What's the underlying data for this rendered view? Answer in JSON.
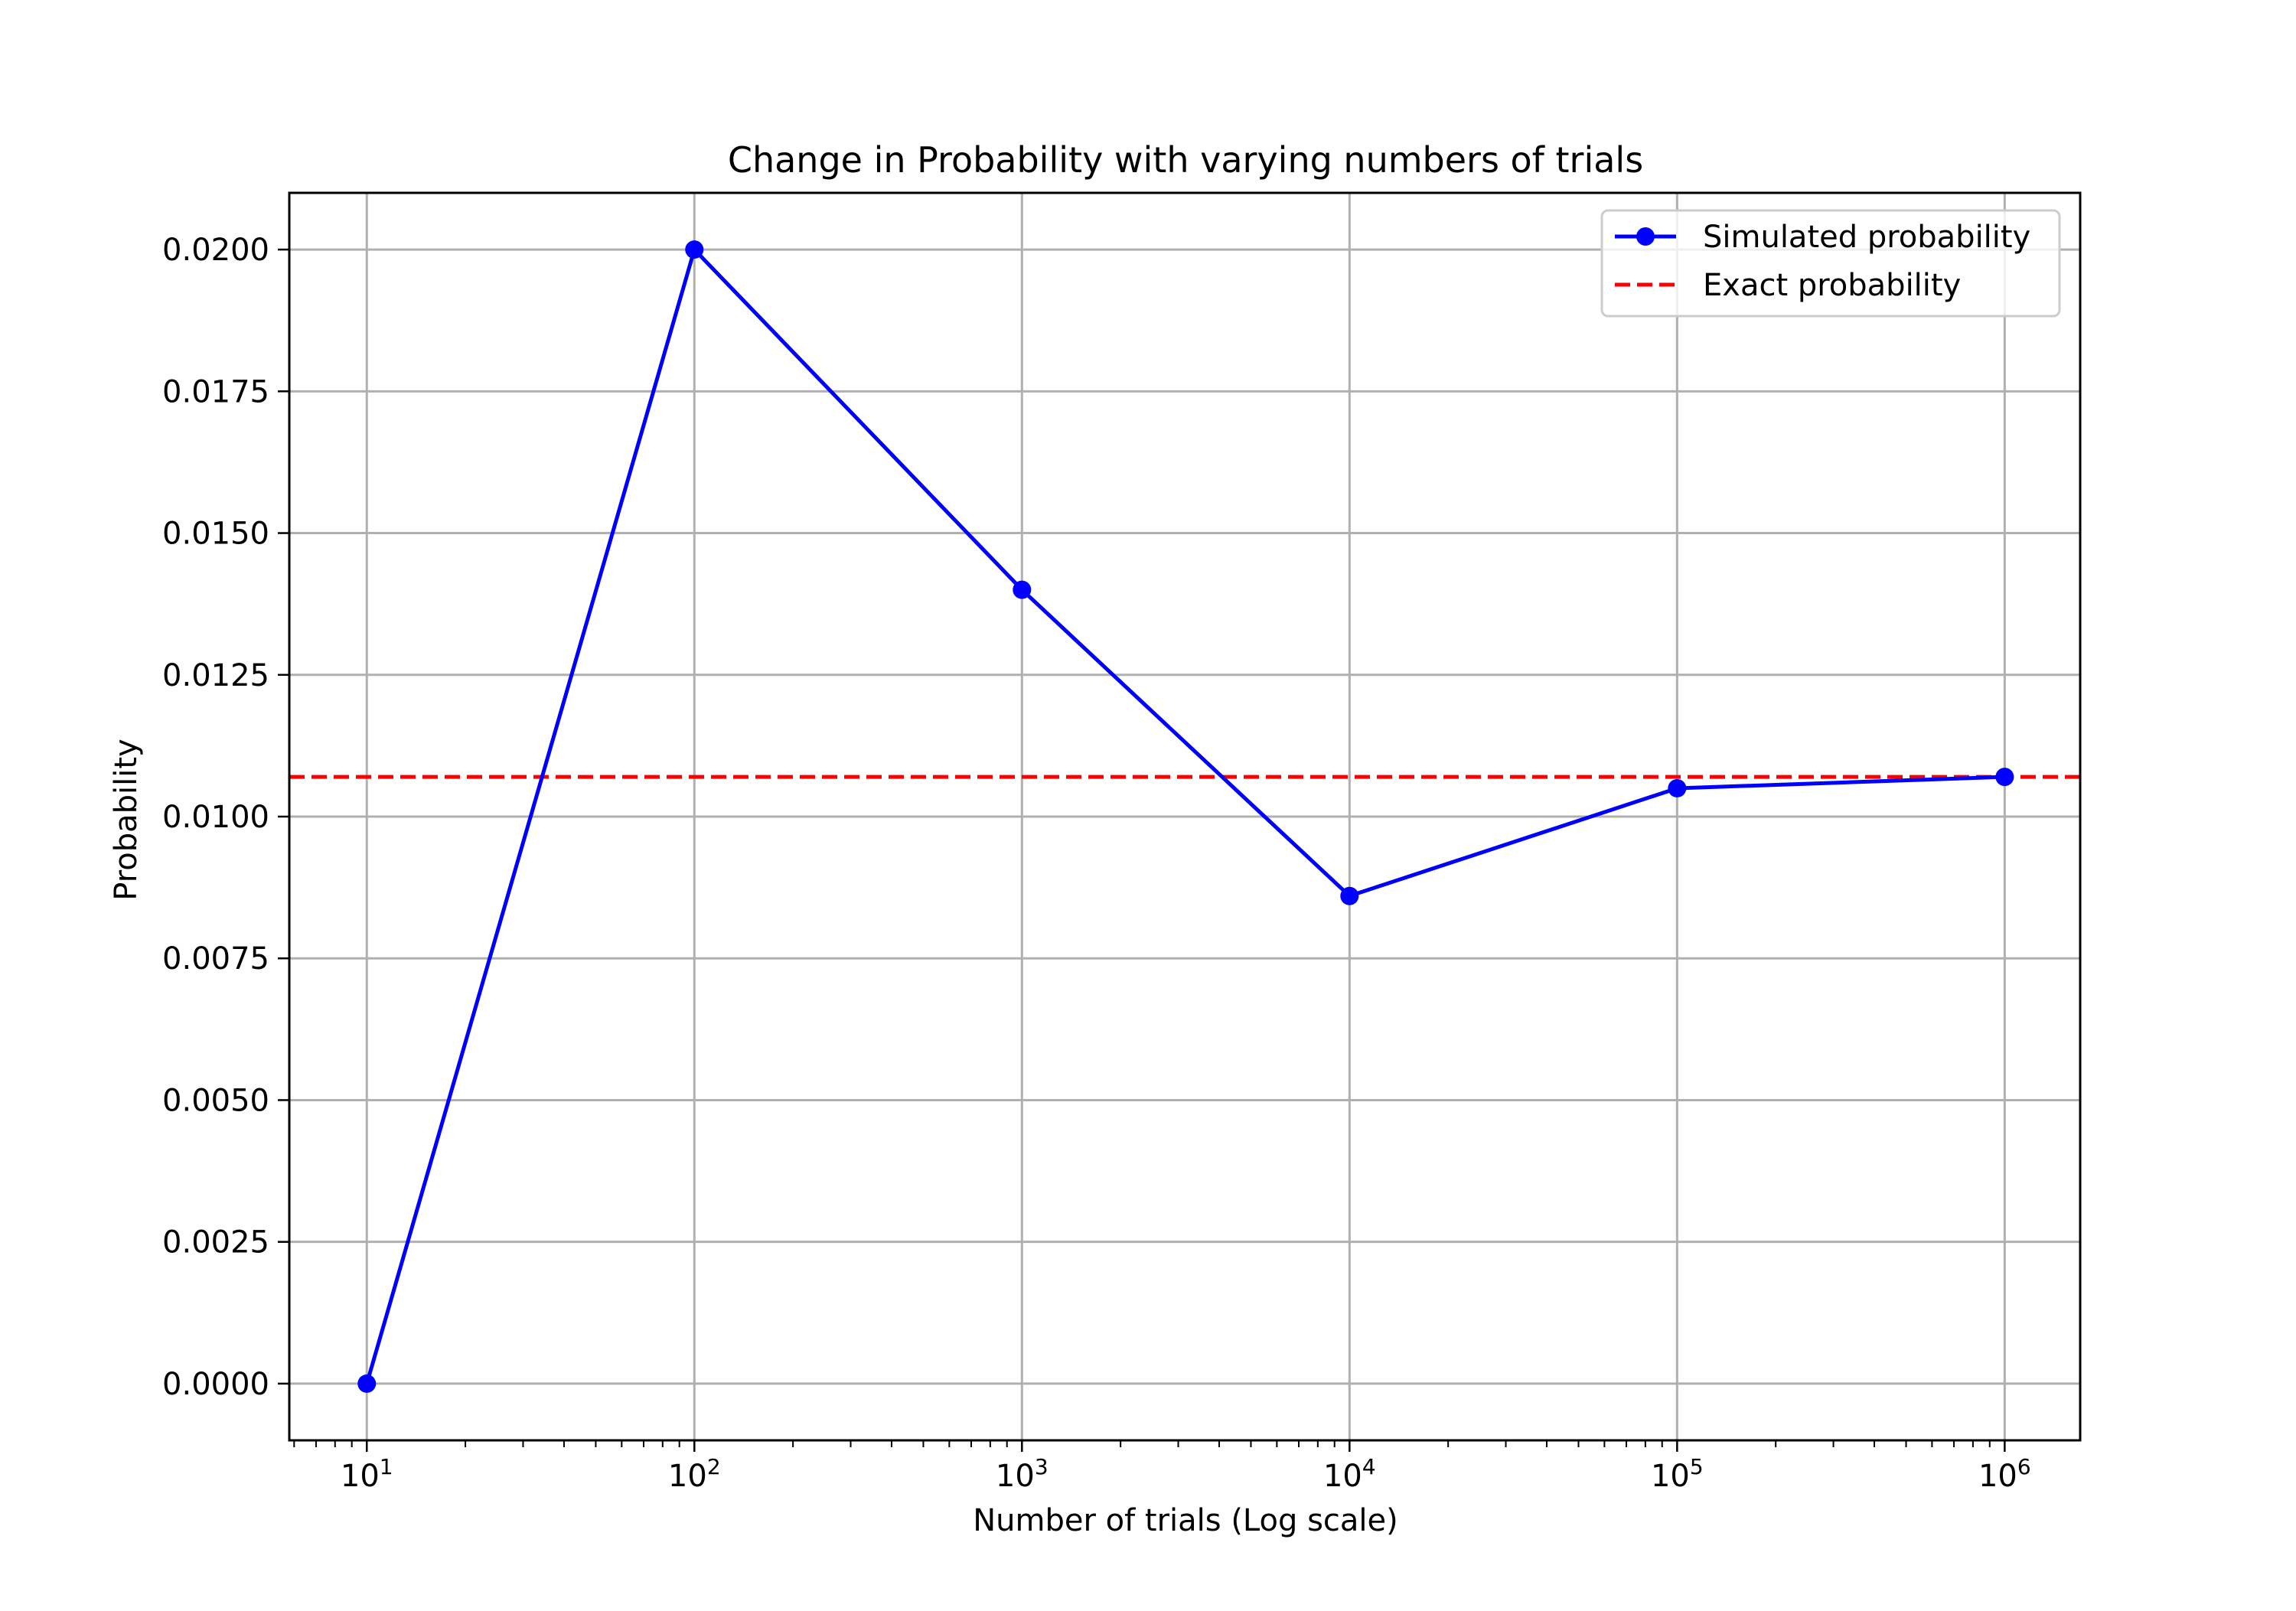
{
  "chart_data": {
    "type": "line",
    "title": "Change in Probability with varying numbers of trials",
    "xlabel": "Number of trials (Log scale)",
    "ylabel": "Probability",
    "x_scale": "log",
    "xlim": [
      5.8,
      1700000
    ],
    "ylim": [
      -0.001,
      0.021
    ],
    "x_ticks": [
      {
        "value": 10,
        "base": "10",
        "exp": "1"
      },
      {
        "value": 100,
        "base": "10",
        "exp": "2"
      },
      {
        "value": 1000,
        "base": "10",
        "exp": "3"
      },
      {
        "value": 10000,
        "base": "10",
        "exp": "4"
      },
      {
        "value": 100000,
        "base": "10",
        "exp": "5"
      },
      {
        "value": 1000000,
        "base": "10",
        "exp": "6"
      }
    ],
    "y_ticks": [
      {
        "value": 0.0,
        "label": "0.0000"
      },
      {
        "value": 0.0025,
        "label": "0.0025"
      },
      {
        "value": 0.005,
        "label": "0.0050"
      },
      {
        "value": 0.0075,
        "label": "0.0075"
      },
      {
        "value": 0.01,
        "label": "0.0100"
      },
      {
        "value": 0.0125,
        "label": "0.0125"
      },
      {
        "value": 0.015,
        "label": "0.0150"
      },
      {
        "value": 0.0175,
        "label": "0.0175"
      },
      {
        "value": 0.02,
        "label": "0.0200"
      }
    ],
    "grid": true,
    "legend_position": "top-right",
    "series": [
      {
        "name": "Simulated probability",
        "style": "solid-with-markers",
        "color": "#0000ff",
        "x": [
          10,
          100,
          1000,
          10000,
          100000,
          1000000
        ],
        "y": [
          0.0,
          0.02,
          0.014,
          0.0086,
          0.0105,
          0.0107
        ]
      }
    ],
    "reference_lines": [
      {
        "name": "Exact probability",
        "style": "dashed",
        "color": "#ff0000",
        "y": 0.0107
      }
    ]
  }
}
